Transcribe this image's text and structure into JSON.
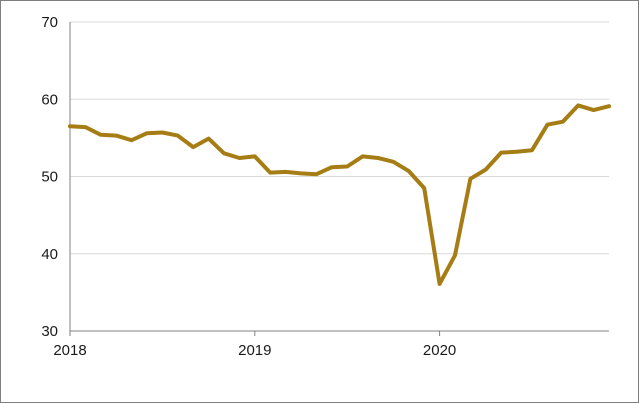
{
  "chart_data": {
    "type": "line",
    "title": "",
    "xlabel": "",
    "ylabel": "",
    "ylim": [
      30,
      70
    ],
    "yticks": [
      30,
      40,
      50,
      60,
      70
    ],
    "xlim": [
      "2018-01",
      "2020-12"
    ],
    "xticks": [
      "2018",
      "2019",
      "2020"
    ],
    "grid": true,
    "legend": "none",
    "series": [
      {
        "color": "#a67c14",
        "points": [
          [
            "2018-01",
            56.5
          ],
          [
            "2018-02",
            56.4
          ],
          [
            "2018-03",
            55.4
          ],
          [
            "2018-04",
            55.3
          ],
          [
            "2018-05",
            54.7
          ],
          [
            "2018-06",
            55.6
          ],
          [
            "2018-07",
            55.7
          ],
          [
            "2018-08",
            55.3
          ],
          [
            "2018-09",
            53.8
          ],
          [
            "2018-10",
            54.9
          ],
          [
            "2018-11",
            53.0
          ],
          [
            "2018-12",
            52.4
          ],
          [
            "2019-01",
            52.6
          ],
          [
            "2019-02",
            50.5
          ],
          [
            "2019-03",
            50.6
          ],
          [
            "2019-04",
            50.4
          ],
          [
            "2019-05",
            50.3
          ],
          [
            "2019-06",
            51.2
          ],
          [
            "2019-07",
            51.3
          ],
          [
            "2019-08",
            52.6
          ],
          [
            "2019-09",
            52.4
          ],
          [
            "2019-10",
            51.9
          ],
          [
            "2019-11",
            50.7
          ],
          [
            "2019-12",
            48.5
          ],
          [
            "2020-01",
            36.1
          ],
          [
            "2020-02",
            39.8
          ],
          [
            "2020-03",
            49.7
          ],
          [
            "2020-04",
            50.9
          ],
          [
            "2020-05",
            53.1
          ],
          [
            "2020-06",
            53.2
          ],
          [
            "2020-07",
            53.4
          ],
          [
            "2020-08",
            56.7
          ],
          [
            "2020-09",
            57.1
          ],
          [
            "2020-10",
            59.2
          ],
          [
            "2020-11",
            58.6
          ],
          [
            "2020-12",
            59.1
          ]
        ]
      }
    ]
  }
}
